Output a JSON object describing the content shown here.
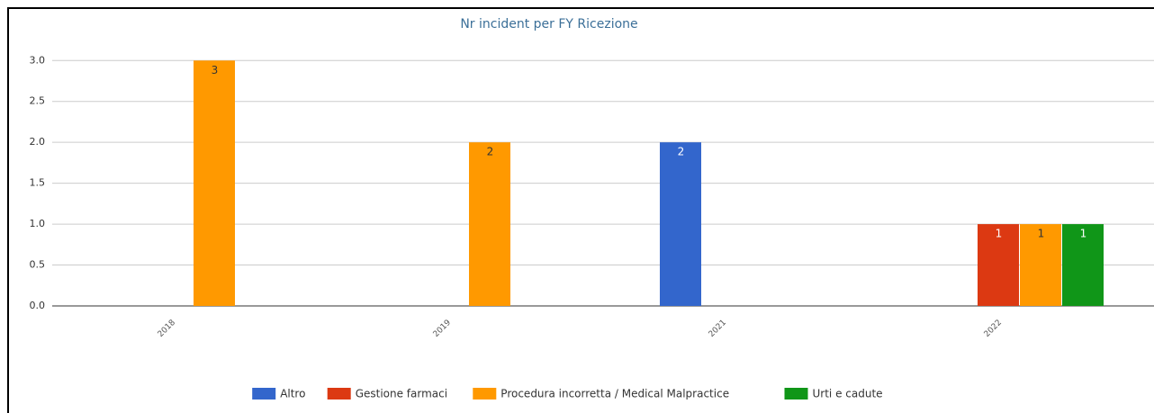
{
  "chart_data": {
    "type": "bar",
    "title": "Nr incident per FY Ricezione",
    "categories": [
      "2018",
      "2019",
      "2021",
      "2022"
    ],
    "series": [
      {
        "name": "Altro",
        "color": "#3366cc",
        "values": [
          null,
          null,
          2,
          null
        ]
      },
      {
        "name": "Gestione farmaci",
        "color": "#dc3912",
        "values": [
          null,
          null,
          null,
          1
        ]
      },
      {
        "name": "Procedura incorretta / Medical Malpractice",
        "color": "#ff9900",
        "values": [
          3,
          2,
          null,
          1
        ]
      },
      {
        "name": "Urti e cadute",
        "color": "#109618",
        "values": [
          null,
          null,
          null,
          1
        ]
      }
    ],
    "ylim": [
      0,
      3.3
    ],
    "yticks": [
      {
        "value": 0,
        "label": "0.0"
      },
      {
        "value": 0.5,
        "label": "0.5"
      },
      {
        "value": 1,
        "label": "1.0"
      },
      {
        "value": 1.5,
        "label": "1.5"
      },
      {
        "value": 2,
        "label": "2.0"
      },
      {
        "value": 2.5,
        "label": "2.5"
      },
      {
        "value": 3,
        "label": "3.0"
      }
    ],
    "grid": true,
    "legend": "bottom"
  }
}
